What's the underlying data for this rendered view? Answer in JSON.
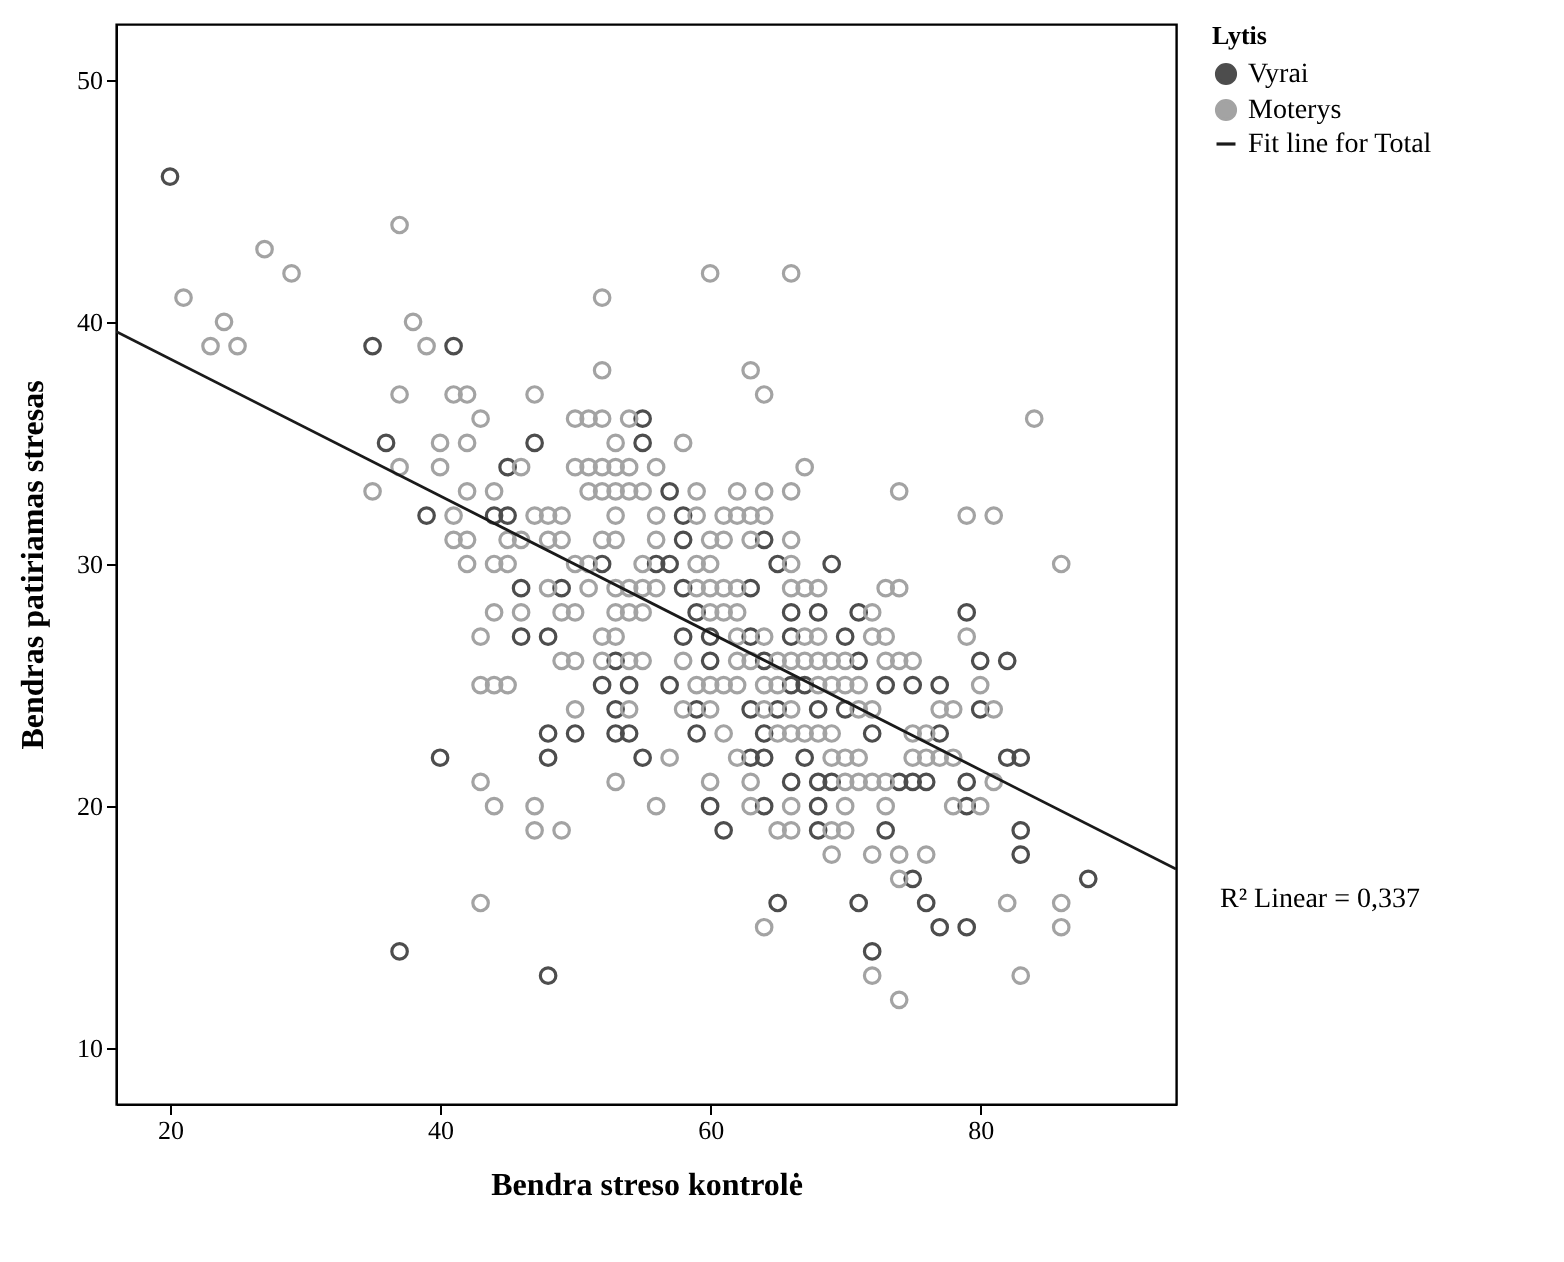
{
  "chart_data": {
    "type": "scatter",
    "xlabel": "Bendra streso kontrolė",
    "ylabel": "Bendras patiriamas stresas",
    "legend_title": "Lytis",
    "legend": "right",
    "marker": "circle",
    "grid": false,
    "xlim": [
      16,
      94.5
    ],
    "ylim": [
      7.7,
      52.3
    ],
    "xticks": [
      20,
      40,
      60,
      80
    ],
    "yticks": [
      10,
      20,
      30,
      40,
      50
    ],
    "annotations": [
      "R² Linear = 0,337"
    ],
    "series": [
      {
        "name": "Vyrai",
        "color": "#4d4d4d",
        "x": [
          20,
          35,
          41,
          36,
          47,
          45,
          39,
          44,
          45,
          55,
          55,
          57,
          58,
          58,
          64,
          46,
          49,
          52,
          46,
          48,
          53,
          52,
          54,
          53,
          48,
          50,
          53,
          54,
          40,
          48,
          55,
          37,
          48,
          56,
          57,
          65,
          69,
          58,
          63,
          59,
          66,
          68,
          71,
          79,
          58,
          60,
          63,
          66,
          70,
          60,
          64,
          71,
          80,
          82,
          57,
          66,
          67,
          73,
          75,
          77,
          59,
          63,
          65,
          68,
          70,
          80,
          59,
          64,
          72,
          77,
          63,
          64,
          67,
          82,
          83,
          66,
          68,
          69,
          74,
          75,
          76,
          79,
          60,
          64,
          68,
          79,
          61,
          68,
          73,
          83,
          83,
          75,
          88,
          65,
          71,
          76,
          77,
          79,
          72
        ],
        "values": [
          46,
          39,
          39,
          35,
          35,
          34,
          32,
          32,
          32,
          35,
          36,
          33,
          32,
          31,
          31,
          29,
          29,
          30,
          27,
          27,
          26,
          25,
          25,
          24,
          23,
          23,
          23,
          23,
          22,
          22,
          22,
          14,
          13,
          30,
          30,
          30,
          30,
          29,
          29,
          28,
          28,
          28,
          28,
          28,
          27,
          27,
          27,
          27,
          27,
          26,
          26,
          26,
          26,
          26,
          25,
          25,
          25,
          25,
          25,
          25,
          24,
          24,
          24,
          24,
          24,
          24,
          23,
          23,
          23,
          23,
          22,
          22,
          22,
          22,
          22,
          21,
          21,
          21,
          21,
          21,
          21,
          21,
          20,
          20,
          20,
          20,
          19,
          19,
          19,
          19,
          18,
          17,
          17,
          16,
          16,
          16,
          15,
          15,
          14
        ]
      },
      {
        "name": "Moterys",
        "color": "#a3a3a3",
        "x": [
          37,
          27,
          29,
          21,
          24,
          23,
          25,
          38,
          39,
          37,
          41,
          42,
          47,
          43,
          40,
          42,
          37,
          40,
          46,
          35,
          42,
          44,
          41,
          47,
          48,
          49,
          41,
          42,
          45,
          46,
          48,
          49,
          52,
          53,
          52,
          52,
          50,
          51,
          52,
          54,
          53,
          50,
          51,
          52,
          53,
          54,
          51,
          52,
          53,
          54,
          55,
          53,
          60,
          66,
          63,
          64,
          84,
          67,
          58,
          56,
          59,
          62,
          64,
          66,
          74,
          56,
          59,
          61,
          62,
          63,
          64,
          79,
          81,
          56,
          60,
          61,
          63,
          66,
          42,
          44,
          45,
          50,
          51,
          55,
          48,
          51,
          53,
          54,
          55,
          44,
          46,
          49,
          50,
          53,
          54,
          55,
          43,
          52,
          53,
          49,
          50,
          52,
          54,
          55,
          43,
          44,
          45,
          50,
          54,
          43,
          53,
          44,
          47,
          56,
          47,
          49,
          43,
          59,
          60,
          66,
          86,
          56,
          59,
          60,
          61,
          62,
          66,
          67,
          68,
          73,
          74,
          60,
          61,
          62,
          72,
          62,
          64,
          67,
          68,
          72,
          73,
          79,
          58,
          62,
          63,
          65,
          66,
          67,
          68,
          69,
          70,
          73,
          74,
          75,
          59,
          60,
          61,
          62,
          64,
          65,
          68,
          69,
          70,
          71,
          80,
          58,
          60,
          64,
          66,
          71,
          72,
          77,
          78,
          81,
          61,
          65,
          66,
          67,
          68,
          69,
          75,
          76,
          57,
          62,
          69,
          70,
          71,
          75,
          76,
          77,
          78,
          60,
          63,
          70,
          71,
          72,
          73,
          81,
          63,
          66,
          70,
          73,
          78,
          80,
          65,
          66,
          69,
          70,
          69,
          72,
          74,
          76,
          74,
          82,
          86,
          64,
          86,
          72,
          83,
          74
        ],
        "values": [
          44,
          43,
          42,
          41,
          40,
          39,
          39,
          40,
          39,
          37,
          37,
          37,
          37,
          36,
          35,
          35,
          34,
          34,
          34,
          33,
          33,
          33,
          32,
          32,
          32,
          32,
          31,
          31,
          31,
          31,
          31,
          31,
          31,
          31,
          41,
          38,
          36,
          36,
          36,
          36,
          35,
          34,
          34,
          34,
          34,
          34,
          33,
          33,
          33,
          33,
          33,
          32,
          42,
          42,
          38,
          37,
          36,
          34,
          35,
          34,
          33,
          33,
          33,
          33,
          33,
          32,
          32,
          32,
          32,
          32,
          32,
          32,
          32,
          31,
          31,
          31,
          31,
          31,
          30,
          30,
          30,
          30,
          30,
          30,
          29,
          29,
          29,
          29,
          29,
          28,
          28,
          28,
          28,
          28,
          28,
          28,
          27,
          27,
          27,
          26,
          26,
          26,
          26,
          26,
          25,
          25,
          25,
          24,
          24,
          21,
          21,
          20,
          20,
          20,
          19,
          19,
          16,
          30,
          30,
          30,
          30,
          29,
          29,
          29,
          29,
          29,
          29,
          29,
          29,
          29,
          29,
          28,
          28,
          28,
          28,
          27,
          27,
          27,
          27,
          27,
          27,
          27,
          26,
          26,
          26,
          26,
          26,
          26,
          26,
          26,
          26,
          26,
          26,
          26,
          25,
          25,
          25,
          25,
          25,
          25,
          25,
          25,
          25,
          25,
          25,
          24,
          24,
          24,
          24,
          24,
          24,
          24,
          24,
          24,
          23,
          23,
          23,
          23,
          23,
          23,
          23,
          23,
          22,
          22,
          22,
          22,
          22,
          22,
          22,
          22,
          22,
          21,
          21,
          21,
          21,
          21,
          21,
          21,
          20,
          20,
          20,
          20,
          20,
          20,
          19,
          19,
          19,
          19,
          18,
          18,
          18,
          18,
          17,
          16,
          16,
          15,
          15,
          13,
          13,
          12
        ]
      },
      {
        "name": "Fit line for Total",
        "type": "line",
        "marker": "none",
        "color": "#1a1a1a",
        "x": [
          16,
          94.5
        ],
        "values": [
          39.6,
          17.4
        ]
      }
    ]
  }
}
